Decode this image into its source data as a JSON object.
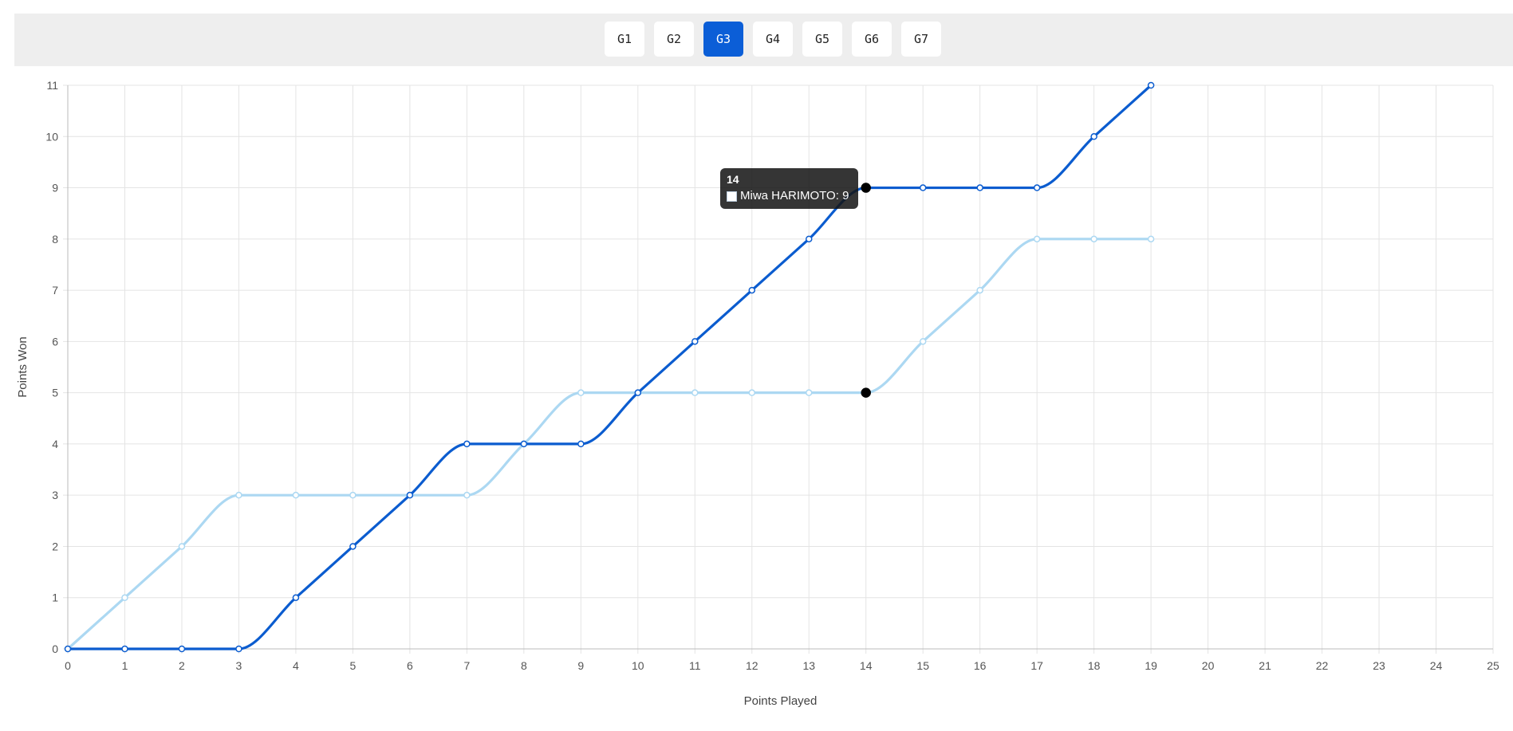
{
  "tabs": [
    {
      "label": "G1",
      "active": false
    },
    {
      "label": "G2",
      "active": false
    },
    {
      "label": "G3",
      "active": true
    },
    {
      "label": "G4",
      "active": false
    },
    {
      "label": "G5",
      "active": false
    },
    {
      "label": "G6",
      "active": false
    },
    {
      "label": "G7",
      "active": false
    }
  ],
  "tooltip": {
    "title": "14",
    "label": "Miwa HARIMOTO: 9"
  },
  "chart_data": {
    "type": "line",
    "xlabel": "Points Played",
    "ylabel": "Points Won",
    "xlim": [
      0,
      25
    ],
    "ylim": [
      0,
      11
    ],
    "grid": true,
    "x": [
      0,
      1,
      2,
      3,
      4,
      5,
      6,
      7,
      8,
      9,
      10,
      11,
      12,
      13,
      14,
      15,
      16,
      17,
      18,
      19
    ],
    "series": [
      {
        "color": "#0b5ccf",
        "values": [
          0,
          0,
          0,
          0,
          1,
          2,
          3,
          4,
          4,
          4,
          5,
          6,
          7,
          8,
          9,
          9,
          9,
          9,
          10,
          11
        ]
      },
      {
        "color": "#acd8f2",
        "values": [
          0,
          1,
          2,
          3,
          3,
          3,
          3,
          3,
          4,
          5,
          5,
          5,
          5,
          5,
          5,
          6,
          7,
          8,
          8,
          8
        ]
      }
    ],
    "highlight_x": 14
  }
}
